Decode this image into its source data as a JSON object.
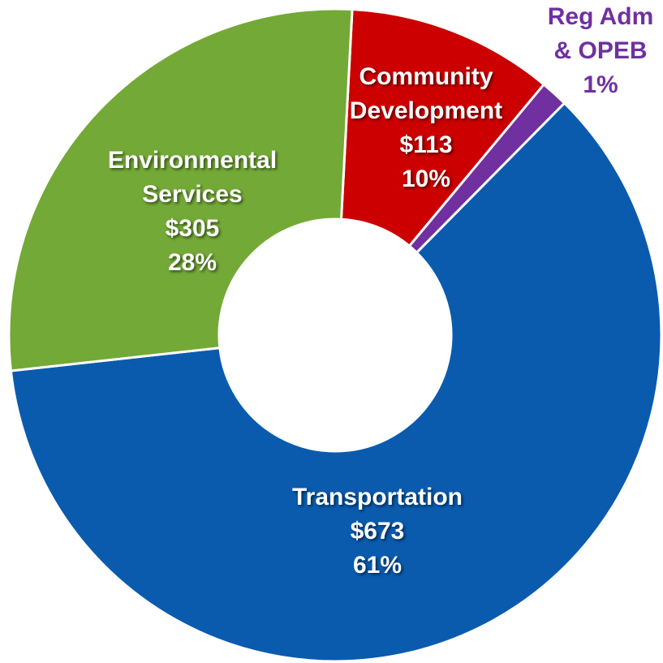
{
  "chart_data": {
    "type": "donut",
    "categories": [
      "Community Development",
      "Reg Adm & OPEB",
      "Transportation",
      "Environmental Services"
    ],
    "values": [
      113,
      15,
      673,
      305
    ],
    "value_labels": [
      "$113",
      null,
      "$673",
      "$305"
    ],
    "percentages": [
      10,
      1,
      61,
      28
    ],
    "percentage_labels": [
      "10%",
      "1%",
      "61%",
      "28%"
    ],
    "colors": [
      "#cc0000",
      "#7030a0",
      "#0a5bae",
      "#73a936"
    ]
  }
}
